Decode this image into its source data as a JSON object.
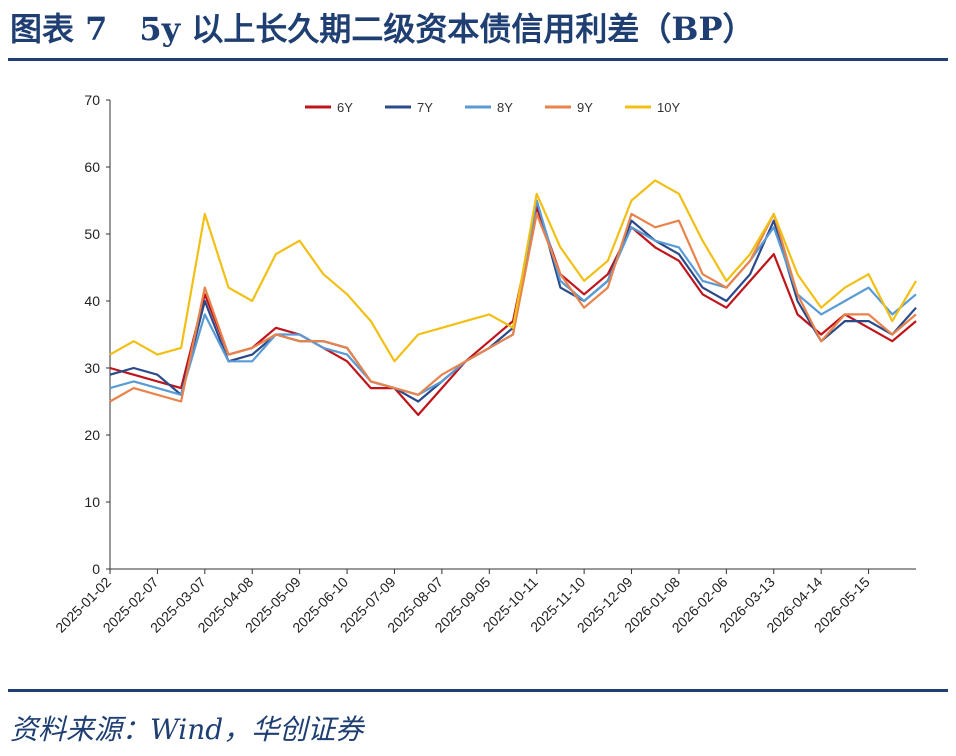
{
  "header": {
    "title": "图表 7　5y 以上长久期二级资本债信用利差（BP）"
  },
  "footer": {
    "source": "资料来源：Wind，华创证券"
  },
  "chart_data": {
    "type": "line",
    "title": "",
    "xlabel": "",
    "ylabel": "",
    "ylim": [
      0,
      70
    ],
    "yticks": [
      0,
      10,
      20,
      30,
      40,
      50,
      60,
      70
    ],
    "x": [
      "2025-01-02",
      "2025-01-20",
      "2025-02-07",
      "2025-02-22",
      "2025-03-07",
      "2025-03-23",
      "2025-04-08",
      "2025-04-23",
      "2025-05-09",
      "2025-05-25",
      "2025-06-10",
      "2025-06-25",
      "2025-07-09",
      "2025-07-24",
      "2025-08-07",
      "2025-08-22",
      "2025-09-05",
      "2025-09-22",
      "2025-10-11",
      "2025-10-25",
      "2025-11-10",
      "2025-11-25",
      "2025-12-09",
      "2025-12-23",
      "2026-01-08",
      "2026-01-23",
      "2026-02-06",
      "2026-02-22",
      "2026-03-13",
      "2026-03-28",
      "2026-04-14",
      "2026-04-29",
      "2026-05-15",
      "2026-05-30",
      "2026-06-12"
    ],
    "xticks": [
      "2025-01-02",
      "2025-02-07",
      "2025-03-07",
      "2025-04-08",
      "2025-05-09",
      "2025-06-10",
      "2025-07-09",
      "2025-08-07",
      "2025-09-05",
      "2025-10-11",
      "2025-11-10",
      "2025-12-09",
      "2026-01-08",
      "2026-02-06",
      "2026-03-13",
      "2026-04-14",
      "2026-05-15"
    ],
    "legend_position": "top",
    "grid": false,
    "series": [
      {
        "name": "6Y",
        "color": "#c0141b",
        "values": [
          30,
          29,
          28,
          27,
          41,
          32,
          33,
          36,
          35,
          33,
          31,
          27,
          27,
          23,
          27,
          31,
          34,
          37,
          54,
          44,
          41,
          44,
          51,
          48,
          46,
          41,
          39,
          43,
          47,
          38,
          35,
          38,
          36,
          34,
          37
        ]
      },
      {
        "name": "7Y",
        "color": "#2a4a8a",
        "values": [
          29,
          30,
          29,
          26,
          40,
          31,
          32,
          35,
          34,
          34,
          33,
          28,
          27,
          25,
          28,
          31,
          33,
          36,
          55,
          42,
          40,
          43,
          52,
          49,
          47,
          42,
          40,
          44,
          52,
          40,
          34,
          37,
          37,
          35,
          39
        ]
      },
      {
        "name": "8Y",
        "color": "#5a9bd5",
        "values": [
          27,
          28,
          27,
          26,
          38,
          31,
          31,
          35,
          35,
          33,
          32,
          28,
          27,
          26,
          28,
          31,
          33,
          35,
          55,
          43,
          40,
          43,
          51,
          49,
          48,
          43,
          42,
          46,
          51,
          41,
          38,
          40,
          42,
          38,
          41
        ]
      },
      {
        "name": "9Y",
        "color": "#e8834b",
        "values": [
          25,
          27,
          26,
          25,
          42,
          32,
          33,
          35,
          34,
          34,
          33,
          28,
          27,
          26,
          29,
          31,
          33,
          35,
          53,
          44,
          39,
          42,
          53,
          51,
          52,
          44,
          42,
          46,
          53,
          41,
          34,
          38,
          38,
          35,
          38
        ]
      },
      {
        "name": "10Y",
        "color": "#f2c014",
        "values": [
          32,
          34,
          32,
          33,
          53,
          42,
          40,
          47,
          49,
          44,
          41,
          37,
          31,
          35,
          36,
          37,
          38,
          36,
          56,
          48,
          43,
          46,
          55,
          58,
          56,
          49,
          43,
          47,
          53,
          44,
          39,
          42,
          44,
          37,
          43
        ]
      }
    ]
  }
}
